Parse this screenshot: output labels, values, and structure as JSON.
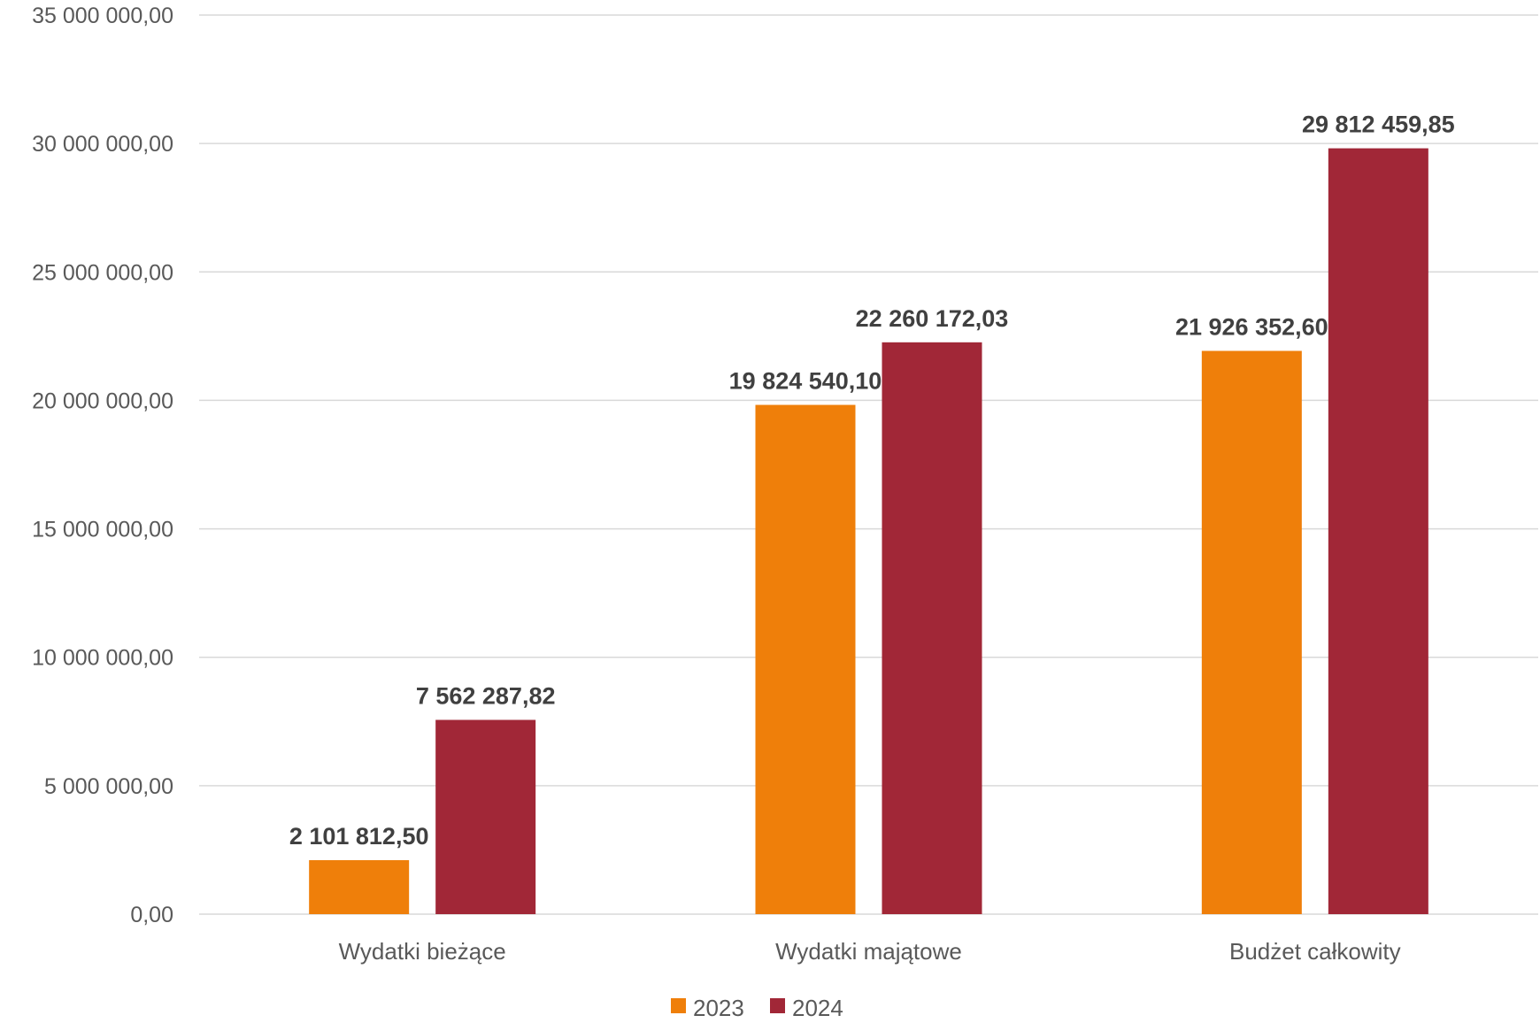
{
  "chart_data": {
    "type": "bar",
    "categories": [
      "Wydatki bieżące",
      "Wydatki majątowe",
      "Budżet całkowity"
    ],
    "series": [
      {
        "name": "2023",
        "color": "#ef7f0a",
        "values": [
          2101812.5,
          19824540.1,
          21926352.6
        ],
        "labels": [
          "2 101 812,50",
          "19 824 540,10",
          "21 926 352,60"
        ]
      },
      {
        "name": "2024",
        "color": "#a12737",
        "values": [
          7562287.82,
          22260172.03,
          29812459.85
        ],
        "labels": [
          "7 562 287,82",
          "22 260 172,03",
          "29 812 459,85"
        ]
      }
    ],
    "ylim": [
      0,
      35000000
    ],
    "yticks": [
      0,
      5000000,
      10000000,
      15000000,
      20000000,
      25000000,
      30000000,
      35000000
    ],
    "ytick_labels": [
      "0,00",
      "5 000 000,00",
      "10 000 000,00",
      "15 000 000,00",
      "20 000 000,00",
      "25 000 000,00",
      "30 000 000,00",
      "35 000 000,00"
    ],
    "grid": true,
    "legend_position": "bottom"
  }
}
